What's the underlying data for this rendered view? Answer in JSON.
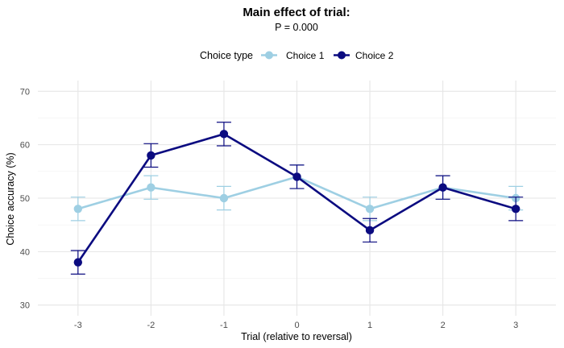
{
  "chart_data": {
    "type": "line",
    "title": "Main effect of trial:",
    "subtitle": "P = 0.000",
    "xlabel": "Trial (relative to reversal)",
    "ylabel": "Choice accuracy (%)",
    "x": [
      -3,
      -2,
      -1,
      0,
      1,
      2,
      3
    ],
    "x_tick_labels": [
      "-3",
      "-2",
      "-1",
      "0",
      "1",
      "2",
      "3"
    ],
    "y_ticks": [
      30,
      40,
      50,
      60,
      70
    ],
    "ylim": [
      28,
      72
    ],
    "xlim": [
      -3.55,
      3.55
    ],
    "grid": true,
    "legend": {
      "title": "Choice type",
      "position": "top"
    },
    "series": [
      {
        "name": "Choice 1",
        "color": "#9ecfe3",
        "values": [
          48,
          52,
          50,
          54,
          48,
          52,
          50
        ],
        "error": [
          2.2,
          2.2,
          2.2,
          2.2,
          2.2,
          2.2,
          2.2
        ]
      },
      {
        "name": "Choice 2",
        "color": "#0b0b80",
        "values": [
          38,
          58,
          62,
          54,
          44,
          52,
          48
        ],
        "error": [
          2.2,
          2.2,
          2.2,
          2.2,
          2.2,
          2.2,
          2.2
        ]
      }
    ]
  }
}
